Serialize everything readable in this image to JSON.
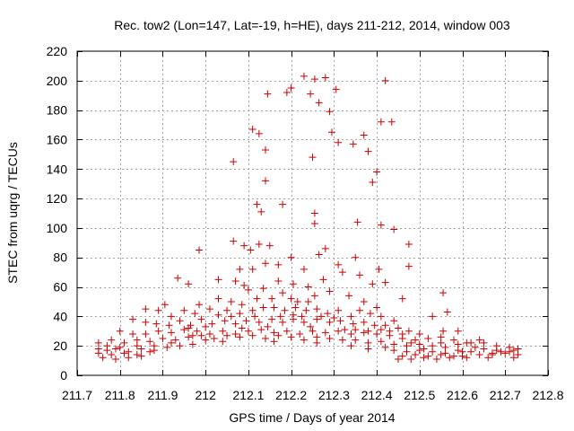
{
  "chart_data": {
    "type": "scatter",
    "title": "Rec. tow2 (Lon=147, Lat=-19, h=HE), days 211-212, 2014, window 003",
    "xlabel": "GPS time / Days of year 2014",
    "ylabel": "STEC from uqrg / TECUs",
    "xlim": [
      211.7,
      212.8
    ],
    "ylim": [
      0,
      220
    ],
    "xticks": [
      211.7,
      211.8,
      211.9,
      212.0,
      212.1,
      212.2,
      212.3,
      212.4,
      212.5,
      212.6,
      212.7,
      212.8
    ],
    "xtick_labels": [
      "211.7",
      "211.8",
      "211.9",
      "212",
      "212.1",
      "212.2",
      "212.3",
      "212.4",
      "212.5",
      "212.6",
      "212.7",
      "212.8"
    ],
    "yticks": [
      0,
      20,
      40,
      60,
      80,
      100,
      120,
      140,
      160,
      180,
      200,
      220
    ],
    "ytick_labels": [
      "0",
      "20",
      "40",
      "60",
      "80",
      "100",
      "120",
      "140",
      "160",
      "180",
      "200",
      "220"
    ],
    "grid": true,
    "legend": "none",
    "marker": "plus",
    "color": "#cc0000",
    "points": [
      [
        212.23,
        203
      ],
      [
        212.255,
        201
      ],
      [
        212.28,
        202
      ],
      [
        212.42,
        200
      ],
      [
        212.2,
        195
      ],
      [
        212.19,
        192
      ],
      [
        212.145,
        191
      ],
      [
        212.245,
        191
      ],
      [
        212.305,
        194
      ],
      [
        212.265,
        185
      ],
      [
        212.29,
        179
      ],
      [
        212.11,
        167
      ],
      [
        212.125,
        164
      ],
      [
        212.295,
        165
      ],
      [
        212.41,
        172
      ],
      [
        212.435,
        172
      ],
      [
        212.345,
        157
      ],
      [
        212.31,
        158
      ],
      [
        212.14,
        153
      ],
      [
        212.38,
        152
      ],
      [
        212.37,
        163
      ],
      [
        212.065,
        145
      ],
      [
        212.25,
        148
      ],
      [
        212.4,
        138
      ],
      [
        212.39,
        131
      ],
      [
        212.14,
        132
      ],
      [
        212.12,
        116
      ],
      [
        212.18,
        116
      ],
      [
        212.13,
        111
      ],
      [
        212.255,
        110
      ],
      [
        212.255,
        103
      ],
      [
        212.355,
        104
      ],
      [
        212.41,
        102
      ],
      [
        212.44,
        99
      ],
      [
        212.065,
        91
      ],
      [
        212.09,
        88
      ],
      [
        212.125,
        89
      ],
      [
        212.15,
        88
      ],
      [
        212.475,
        89
      ],
      [
        211.985,
        85
      ],
      [
        212.28,
        86
      ],
      [
        212.105,
        85
      ],
      [
        212.2,
        80
      ],
      [
        212.265,
        82
      ],
      [
        212.35,
        80
      ],
      [
        212.14,
        76
      ],
      [
        212.17,
        75
      ],
      [
        212.31,
        75
      ],
      [
        212.08,
        72
      ],
      [
        212.23,
        72
      ],
      [
        212.405,
        72
      ],
      [
        212.475,
        74
      ],
      [
        212.11,
        72
      ],
      [
        211.935,
        66
      ],
      [
        212.03,
        65
      ],
      [
        212.07,
        64
      ],
      [
        212.09,
        61
      ],
      [
        212.135,
        59
      ],
      [
        212.17,
        64
      ],
      [
        212.205,
        62
      ],
      [
        212.24,
        60
      ],
      [
        212.275,
        65
      ],
      [
        212.32,
        70
      ],
      [
        212.36,
        68
      ],
      [
        212.39,
        62
      ],
      [
        212.42,
        63
      ],
      [
        212.555,
        56
      ],
      [
        211.96,
        62
      ],
      [
        212.1,
        58
      ],
      [
        212.18,
        56
      ],
      [
        212.255,
        54
      ],
      [
        212.29,
        57
      ],
      [
        212.335,
        54
      ],
      [
        212.46,
        52
      ],
      [
        212.12,
        52
      ],
      [
        212.155,
        52
      ],
      [
        212.215,
        50
      ],
      [
        212.24,
        50
      ],
      [
        211.905,
        48
      ],
      [
        211.985,
        48
      ],
      [
        212.03,
        52
      ],
      [
        212.06,
        50
      ],
      [
        212.085,
        48
      ],
      [
        212.2,
        52
      ],
      [
        212.37,
        50
      ],
      [
        212.4,
        46
      ],
      [
        211.86,
        45
      ],
      [
        211.89,
        44
      ],
      [
        211.92,
        40
      ],
      [
        211.95,
        44
      ],
      [
        211.975,
        42
      ],
      [
        212.01,
        45
      ],
      [
        212.05,
        44
      ],
      [
        212.08,
        42
      ],
      [
        212.11,
        44
      ],
      [
        212.135,
        46
      ],
      [
        212.16,
        46
      ],
      [
        212.185,
        44
      ],
      [
        212.21,
        46
      ],
      [
        212.235,
        44
      ],
      [
        212.26,
        45
      ],
      [
        212.285,
        42
      ],
      [
        212.31,
        44
      ],
      [
        212.34,
        40
      ],
      [
        212.36,
        44
      ],
      [
        212.385,
        42
      ],
      [
        212.41,
        40
      ],
      [
        212.44,
        37
      ],
      [
        212.53,
        40
      ],
      [
        212.565,
        43
      ],
      [
        211.83,
        38
      ],
      [
        211.86,
        36
      ],
      [
        211.885,
        35
      ],
      [
        211.915,
        34
      ],
      [
        211.94,
        37
      ],
      [
        211.965,
        34
      ],
      [
        211.99,
        38
      ],
      [
        212.015,
        35
      ],
      [
        212.045,
        37
      ],
      [
        212.07,
        35
      ],
      [
        212.095,
        37
      ],
      [
        212.125,
        36
      ],
      [
        212.155,
        38
      ],
      [
        212.18,
        36
      ],
      [
        212.205,
        38
      ],
      [
        212.23,
        36
      ],
      [
        212.26,
        38
      ],
      [
        212.29,
        36
      ],
      [
        212.315,
        37
      ],
      [
        212.345,
        35
      ],
      [
        212.37,
        36
      ],
      [
        212.395,
        34
      ],
      [
        212.42,
        34
      ],
      [
        212.45,
        32
      ],
      [
        212.475,
        30
      ],
      [
        212.5,
        28
      ],
      [
        212.555,
        30
      ],
      [
        212.59,
        30
      ],
      [
        211.8,
        30
      ],
      [
        211.83,
        28
      ],
      [
        211.86,
        28
      ],
      [
        211.89,
        30
      ],
      [
        211.92,
        29
      ],
      [
        211.95,
        31
      ],
      [
        211.98,
        30
      ],
      [
        212.01,
        28
      ],
      [
        212.04,
        30
      ],
      [
        212.07,
        28
      ],
      [
        212.1,
        30
      ],
      [
        212.13,
        31
      ],
      [
        212.16,
        29
      ],
      [
        212.19,
        30
      ],
      [
        212.22,
        28
      ],
      [
        212.25,
        30
      ],
      [
        212.28,
        29
      ],
      [
        212.31,
        30
      ],
      [
        212.34,
        28
      ],
      [
        212.37,
        29
      ],
      [
        212.4,
        28
      ],
      [
        212.43,
        27
      ],
      [
        212.46,
        25
      ],
      [
        212.49,
        24
      ],
      [
        212.52,
        25
      ],
      [
        212.55,
        26
      ],
      [
        212.58,
        24
      ],
      [
        212.61,
        22
      ],
      [
        212.64,
        24
      ],
      [
        211.75,
        22
      ],
      [
        211.78,
        24
      ],
      [
        211.81,
        22
      ],
      [
        211.84,
        24
      ],
      [
        211.87,
        23
      ],
      [
        211.9,
        25
      ],
      [
        211.93,
        24
      ],
      [
        211.96,
        26
      ],
      [
        211.99,
        27
      ],
      [
        212.02,
        25
      ],
      [
        212.05,
        27
      ],
      [
        212.08,
        26
      ],
      [
        212.11,
        27
      ],
      [
        212.14,
        25
      ],
      [
        212.17,
        27
      ],
      [
        212.2,
        26
      ],
      [
        212.23,
        24
      ],
      [
        212.26,
        26
      ],
      [
        212.29,
        25
      ],
      [
        212.32,
        24
      ],
      [
        212.35,
        24
      ],
      [
        212.38,
        22
      ],
      [
        212.41,
        23
      ],
      [
        212.44,
        21
      ],
      [
        212.47,
        20
      ],
      [
        212.5,
        21
      ],
      [
        212.53,
        20
      ],
      [
        212.56,
        19
      ],
      [
        212.59,
        21
      ],
      [
        212.62,
        22
      ],
      [
        212.65,
        22
      ],
      [
        212.68,
        20
      ],
      [
        212.71,
        19
      ],
      [
        211.75,
        18
      ],
      [
        211.77,
        17
      ],
      [
        211.79,
        18
      ],
      [
        211.82,
        16
      ],
      [
        211.85,
        18
      ],
      [
        211.88,
        17
      ],
      [
        211.91,
        19
      ],
      [
        211.94,
        20
      ],
      [
        211.97,
        21
      ],
      [
        212.44,
        17
      ],
      [
        212.47,
        16
      ],
      [
        212.5,
        17
      ],
      [
        212.53,
        16
      ],
      [
        212.56,
        15
      ],
      [
        212.59,
        17
      ],
      [
        212.62,
        16
      ],
      [
        212.65,
        18
      ],
      [
        212.68,
        17
      ],
      [
        212.71,
        16
      ],
      [
        212.73,
        18
      ],
      [
        211.75,
        15
      ],
      [
        211.78,
        14
      ],
      [
        211.81,
        15
      ],
      [
        211.84,
        14
      ],
      [
        211.87,
        16
      ],
      [
        212.46,
        13
      ],
      [
        212.49,
        14
      ],
      [
        212.52,
        13
      ],
      [
        212.55,
        14
      ],
      [
        212.58,
        13
      ],
      [
        212.61,
        12
      ],
      [
        212.64,
        14
      ],
      [
        212.67,
        14
      ],
      [
        212.7,
        15
      ],
      [
        212.73,
        14
      ],
      [
        211.76,
        12
      ],
      [
        211.79,
        11
      ],
      [
        211.82,
        12
      ],
      [
        211.85,
        13
      ],
      [
        212.45,
        11
      ],
      [
        212.48,
        11
      ],
      [
        212.51,
        12
      ],
      [
        212.54,
        11
      ],
      [
        212.57,
        12
      ],
      [
        212.6,
        13
      ],
      [
        212.66,
        12
      ],
      [
        212.72,
        12
      ],
      [
        211.96,
        32
      ],
      [
        211.97,
        27
      ],
      [
        212.0,
        33
      ],
      [
        212.03,
        41
      ],
      [
        212.06,
        40
      ],
      [
        212.085,
        32
      ],
      [
        212.115,
        40
      ],
      [
        212.145,
        33
      ],
      [
        212.175,
        40
      ],
      [
        212.205,
        41
      ],
      [
        212.225,
        40
      ],
      [
        212.245,
        33
      ],
      [
        212.27,
        40
      ],
      [
        212.3,
        39
      ],
      [
        212.325,
        31
      ],
      [
        212.35,
        31
      ],
      [
        212.38,
        30
      ],
      [
        212.41,
        31
      ],
      [
        212.43,
        30
      ],
      [
        212.46,
        28
      ],
      [
        212.48,
        22
      ],
      [
        211.77,
        20
      ],
      [
        211.8,
        19
      ],
      [
        211.84,
        20
      ],
      [
        211.88,
        20
      ],
      [
        211.92,
        22
      ],
      [
        212.0,
        24
      ],
      [
        212.04,
        23
      ],
      [
        212.16,
        23
      ],
      [
        212.26,
        22
      ],
      [
        212.34,
        20
      ],
      [
        212.38,
        18
      ],
      [
        212.42,
        19
      ],
      [
        212.55,
        22
      ],
      [
        212.63,
        19
      ],
      [
        212.69,
        16
      ],
      [
        212.51,
        18
      ],
      [
        212.6,
        16
      ],
      [
        212.67,
        15
      ],
      [
        212.72,
        17
      ]
    ]
  }
}
